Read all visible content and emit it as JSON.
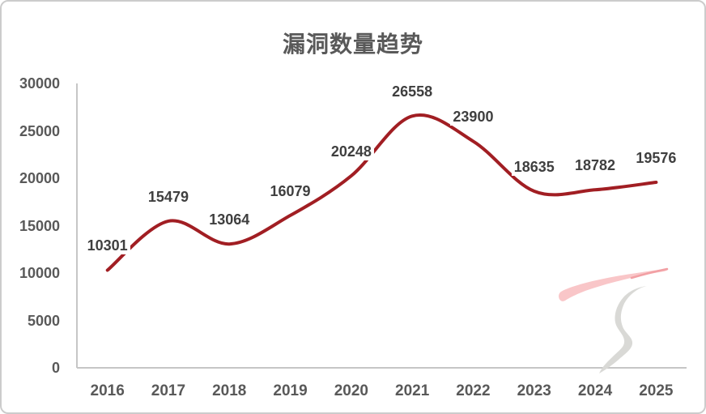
{
  "colors": {
    "line": "#A11E23",
    "axis_line": "#C6C6C6",
    "tick_label": "#595959",
    "data_label": "#3F3F3F",
    "title": "#595959",
    "card_border": "#CCCCCC",
    "background": "#FFFFFF",
    "watermark_pink": "#F9C6C8",
    "watermark_pink_tip": "#F2A0A4",
    "watermark_gray": "#D9D9D6"
  },
  "chart_data": {
    "type": "line",
    "title": "漏洞数量趋势",
    "categories": [
      "2016",
      "2017",
      "2018",
      "2019",
      "2020",
      "2021",
      "2022",
      "2023",
      "2024",
      "2025"
    ],
    "values": [
      10301,
      15479,
      13064,
      16079,
      20248,
      26558,
      23900,
      18635,
      18782,
      19576
    ],
    "ylim": [
      0,
      30000
    ],
    "yticks": [
      0,
      5000,
      10000,
      15000,
      20000,
      25000,
      30000
    ],
    "xlabel": "",
    "ylabel": "",
    "grid": false,
    "legend": "none",
    "smooth": true,
    "data_labels": true,
    "line_width": 4
  }
}
